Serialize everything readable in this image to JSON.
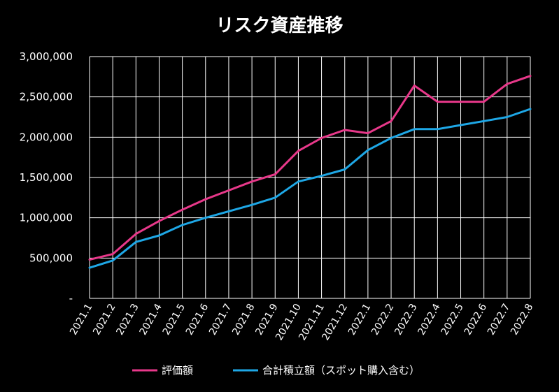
{
  "chart_data": {
    "type": "line",
    "title": "リスク資産推移",
    "categories": [
      "2021.1",
      "2021.2",
      "2021.3",
      "2021.4",
      "2021.5",
      "2021.6",
      "2021.7",
      "2021.8",
      "2021.9",
      "2021.10",
      "2021.11",
      "2021.12",
      "2022.1",
      "2022.2",
      "2022.3",
      "2022.4",
      "2022.5",
      "2022.6",
      "2022.7",
      "2022.8"
    ],
    "ylim": [
      0,
      3000000
    ],
    "yticks": [
      0,
      500000,
      1000000,
      1500000,
      2000000,
      2500000,
      3000000
    ],
    "ytick_labels": [
      "-",
      "500,000",
      "1,000,000",
      "1,500,000",
      "2,000,000",
      "2,500,000",
      "3,000,000"
    ],
    "grid": true,
    "legend_position": "bottom",
    "series": [
      {
        "name": "評価額",
        "color": "#e8388a",
        "values": [
          480000,
          550000,
          800000,
          960000,
          1100000,
          1230000,
          1340000,
          1450000,
          1540000,
          1830000,
          1990000,
          2090000,
          2050000,
          2200000,
          2640000,
          2440000,
          2440000,
          2440000,
          2660000,
          2760000
        ]
      },
      {
        "name": "合計積立額（スポット購入含む）",
        "color": "#1ea7e6",
        "values": [
          380000,
          470000,
          700000,
          780000,
          910000,
          1000000,
          1080000,
          1160000,
          1250000,
          1450000,
          1520000,
          1600000,
          1840000,
          1990000,
          2100000,
          2100000,
          2150000,
          2200000,
          2250000,
          2350000
        ]
      }
    ]
  }
}
